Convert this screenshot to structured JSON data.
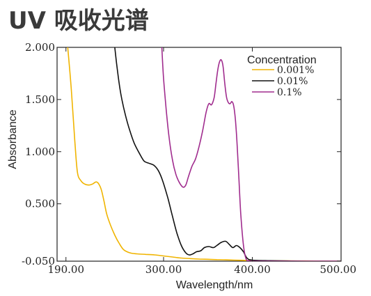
{
  "header": {
    "title": "UV 吸收光谱"
  },
  "chart_data": {
    "type": "line",
    "title": "",
    "xlabel": "Wavelength/nm",
    "ylabel": "Absorbance",
    "xlim": [
      180,
      500
    ],
    "ylim": [
      -0.05,
      2.0
    ],
    "x_ticks": [
      190,
      300,
      400,
      500
    ],
    "x_tick_labels": [
      "190.00",
      "300.00",
      "400.00",
      "500.00"
    ],
    "y_ticks": [
      -0.05,
      0.5,
      1.0,
      1.5,
      2.0
    ],
    "y_tick_labels": [
      "-0.050",
      "0.500",
      "1.000",
      "1.500",
      "2.000"
    ],
    "grid": false,
    "legend": {
      "title": "Concentration",
      "position": "top-right"
    },
    "series": [
      {
        "name": "0.001%",
        "color": "#f0b400",
        "x": [
          192,
          196,
          200,
          203,
          207,
          211,
          216,
          220,
          224,
          227,
          230,
          233,
          236,
          240,
          245,
          250,
          255,
          262,
          270,
          280,
          290,
          300,
          310,
          320,
          330,
          340,
          350,
          360,
          370,
          380,
          390,
          400,
          420,
          440,
          460,
          480,
          500
        ],
        "y": [
          2.0,
          1.6,
          1.1,
          0.8,
          0.72,
          0.69,
          0.68,
          0.69,
          0.71,
          0.69,
          0.63,
          0.52,
          0.4,
          0.3,
          0.2,
          0.12,
          0.06,
          0.03,
          0.02,
          0.015,
          0.01,
          0.0,
          -0.01,
          -0.02,
          -0.025,
          -0.03,
          -0.032,
          -0.035,
          -0.037,
          -0.04,
          -0.042,
          -0.045,
          -0.046,
          -0.047,
          -0.048,
          -0.049,
          -0.05
        ]
      },
      {
        "name": "0.01%",
        "color": "#111111",
        "x": [
          245,
          247,
          250,
          253,
          257,
          262,
          267,
          273,
          278,
          283,
          289,
          294,
          299,
          305,
          310,
          315,
          320,
          325,
          329,
          333,
          337,
          342,
          346,
          351,
          356,
          360,
          365,
          370,
          374,
          378,
          382,
          386,
          390,
          394,
          400,
          420,
          440,
          460,
          500
        ],
        "y": [
          2.0,
          1.85,
          1.65,
          1.5,
          1.35,
          1.2,
          1.08,
          0.98,
          0.91,
          0.89,
          0.87,
          0.82,
          0.72,
          0.55,
          0.38,
          0.22,
          0.1,
          0.03,
          0.01,
          0.02,
          0.04,
          0.05,
          0.08,
          0.09,
          0.08,
          0.1,
          0.13,
          0.14,
          0.11,
          0.08,
          0.1,
          0.08,
          0.04,
          -0.02,
          -0.04,
          -0.045,
          -0.048,
          -0.05,
          -0.05
        ]
      },
      {
        "name": "0.1%",
        "color": "#a02c8e",
        "x": [
          298,
          300,
          303,
          306,
          310,
          314,
          318,
          322,
          325,
          328,
          332,
          336,
          340,
          344,
          348,
          351,
          354,
          357,
          359,
          361,
          363,
          365,
          367,
          369,
          371,
          373,
          375,
          377,
          379,
          381,
          383,
          385,
          387,
          390,
          393,
          396,
          400,
          420,
          440,
          500
        ],
        "y": [
          2.0,
          1.7,
          1.4,
          1.15,
          0.92,
          0.78,
          0.7,
          0.66,
          0.68,
          0.76,
          0.86,
          0.93,
          1.05,
          1.2,
          1.38,
          1.46,
          1.45,
          1.52,
          1.65,
          1.78,
          1.86,
          1.88,
          1.82,
          1.65,
          1.52,
          1.47,
          1.46,
          1.48,
          1.44,
          1.3,
          1.05,
          0.72,
          0.4,
          0.1,
          -0.03,
          -0.045,
          -0.05,
          -0.05,
          -0.05,
          -0.05
        ]
      }
    ]
  }
}
